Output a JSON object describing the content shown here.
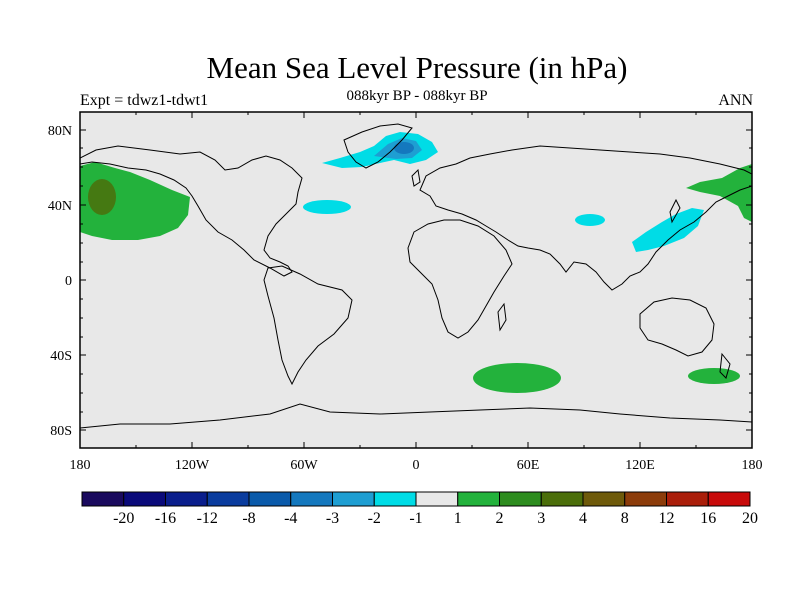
{
  "header": {
    "title": "Mean Sea Level Pressure (in hPa)",
    "subtitle": "088kyr BP - 088kyr BP",
    "left_label": "Expt = tdwz1-tdwt1",
    "right_label": "ANN"
  },
  "map": {
    "lat_ticks": [
      "80N",
      "40N",
      "0",
      "40S",
      "80S"
    ],
    "lon_ticks": [
      "180",
      "120W",
      "60W",
      "0",
      "60E",
      "120E",
      "180"
    ],
    "background_color": "#e8e8e8"
  },
  "colorbar": {
    "labels": [
      "-20",
      "-16",
      "-12",
      "-8",
      "-4",
      "-3",
      "-2",
      "-1",
      "1",
      "2",
      "3",
      "4",
      "8",
      "12",
      "16",
      "20"
    ],
    "colors": [
      "#1a0a5e",
      "#0a0a7a",
      "#0a1e8c",
      "#0a3c9e",
      "#0a5aaa",
      "#1478be",
      "#1e9ed2",
      "#00dce6",
      "#e8e8e8",
      "#23b23c",
      "#2d8c1e",
      "#4b6e0a",
      "#6e5a0a",
      "#8c3c0a",
      "#aa1e0a",
      "#c80a0a"
    ]
  },
  "anomalies": [
    {
      "region": "Greenland / North Atlantic",
      "sign": "negative",
      "range": "-3 to -1"
    },
    {
      "region": "Central North Atlantic",
      "sign": "negative",
      "range": "-2 to -1"
    },
    {
      "region": "Tibet",
      "sign": "negative",
      "range": "-2 to -1"
    },
    {
      "region": "NW Pacific / Japan",
      "sign": "negative",
      "range": "-2 to -1"
    },
    {
      "region": "North Pacific",
      "sign": "positive",
      "range": "1 to 3"
    },
    {
      "region": "Kamchatka / Bering",
      "sign": "positive",
      "range": "1 to 2"
    },
    {
      "region": "South Indian Ocean",
      "sign": "positive",
      "range": "1 to 2"
    },
    {
      "region": "SW Pacific / New Zealand",
      "sign": "positive",
      "range": "1 to 2"
    }
  ]
}
